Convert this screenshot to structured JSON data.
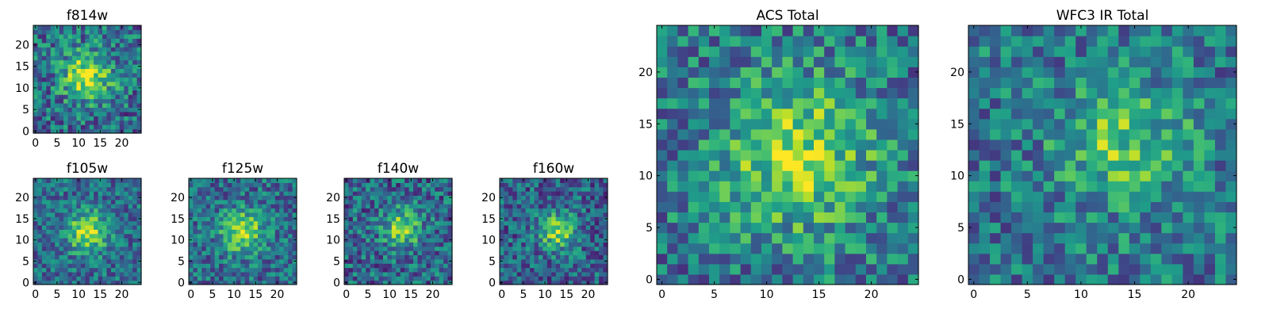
{
  "chart_data": [
    {
      "type": "heatmap",
      "title": "f814w",
      "grid_size": 25,
      "xlim": [
        -0.5,
        24.5
      ],
      "ylim": [
        -0.5,
        24.5
      ],
      "xticks": [
        0,
        5,
        10,
        15,
        20
      ],
      "yticks": [
        0,
        5,
        10,
        15,
        20
      ],
      "colormap": "viridis",
      "center": [
        12,
        13
      ],
      "sigma": 4.0,
      "peak": 0.55,
      "base": 0.45,
      "noise": 0.4,
      "seed": 11
    },
    {
      "type": "heatmap",
      "title": "f105w",
      "grid_size": 25,
      "xlim": [
        -0.5,
        24.5
      ],
      "ylim": [
        -0.5,
        24.5
      ],
      "xticks": [
        0,
        5,
        10,
        15,
        20
      ],
      "yticks": [
        0,
        5,
        10,
        15,
        20
      ],
      "colormap": "viridis",
      "center": [
        12,
        12
      ],
      "sigma": 3.2,
      "peak": 0.55,
      "base": 0.45,
      "noise": 0.32,
      "seed": 23
    },
    {
      "type": "heatmap",
      "title": "f125w",
      "grid_size": 25,
      "xlim": [
        -0.5,
        24.5
      ],
      "ylim": [
        -0.5,
        24.5
      ],
      "xticks": [
        0,
        5,
        10,
        15,
        20
      ],
      "yticks": [
        0,
        5,
        10,
        15,
        20
      ],
      "colormap": "viridis",
      "center": [
        12,
        12
      ],
      "sigma": 3.5,
      "peak": 0.5,
      "base": 0.45,
      "noise": 0.34,
      "seed": 37
    },
    {
      "type": "heatmap",
      "title": "f140w",
      "grid_size": 25,
      "xlim": [
        -0.5,
        24.5
      ],
      "ylim": [
        -0.5,
        24.5
      ],
      "xticks": [
        0,
        5,
        10,
        15,
        20
      ],
      "yticks": [
        0,
        5,
        10,
        15,
        20
      ],
      "colormap": "viridis",
      "center": [
        13,
        13
      ],
      "sigma": 3.0,
      "peak": 0.5,
      "base": 0.42,
      "noise": 0.38,
      "seed": 41
    },
    {
      "type": "heatmap",
      "title": "f160w",
      "grid_size": 25,
      "xlim": [
        -0.5,
        24.5
      ],
      "ylim": [
        -0.5,
        24.5
      ],
      "xticks": [
        0,
        5,
        10,
        15,
        20
      ],
      "yticks": [
        0,
        5,
        10,
        15,
        20
      ],
      "colormap": "viridis",
      "center": [
        13,
        12
      ],
      "sigma": 3.0,
      "peak": 0.5,
      "base": 0.4,
      "noise": 0.36,
      "seed": 53
    },
    {
      "type": "heatmap",
      "title": "ACS Total",
      "grid_size": 25,
      "xlim": [
        -0.5,
        24.5
      ],
      "ylim": [
        -0.5,
        24.5
      ],
      "xticks": [
        0,
        5,
        10,
        15,
        20
      ],
      "yticks": [
        0,
        5,
        10,
        15,
        20
      ],
      "colormap": "viridis",
      "center": [
        13,
        12
      ],
      "sigma": 5.0,
      "peak": 0.45,
      "base": 0.5,
      "noise": 0.38,
      "seed": 67
    },
    {
      "type": "heatmap",
      "title": "WFC3 IR Total",
      "grid_size": 25,
      "xlim": [
        -0.5,
        24.5
      ],
      "ylim": [
        -0.5,
        24.5
      ],
      "xticks": [
        0,
        5,
        10,
        15,
        20
      ],
      "yticks": [
        0,
        5,
        10,
        15,
        20
      ],
      "colormap": "viridis",
      "center": [
        14,
        13
      ],
      "sigma": 4.0,
      "peak": 0.35,
      "base": 0.5,
      "noise": 0.36,
      "seed": 79
    }
  ]
}
